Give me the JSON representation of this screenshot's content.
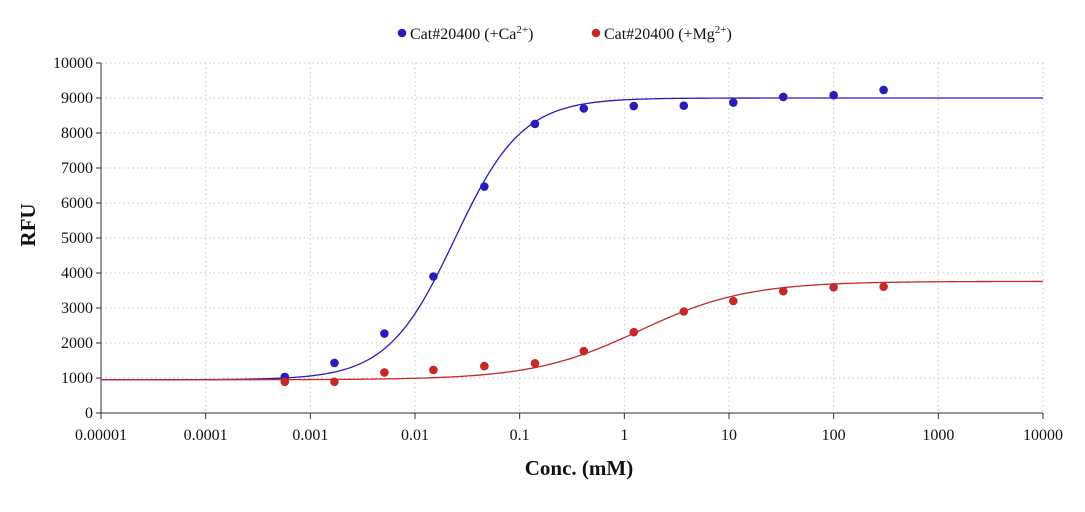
{
  "chart_data": {
    "type": "scatter",
    "xscale": "log",
    "xlim": [
      1e-05,
      10000
    ],
    "ylim": [
      0,
      10000
    ],
    "xlabel": "Conc. (mM)",
    "ylabel": "RFU",
    "grid": true,
    "legend_position": "top-center",
    "x_tick_labels": [
      "0.00001",
      "0.0001",
      "0.001",
      "0.01",
      "0.1",
      "1",
      "10",
      "100",
      "1000",
      "10000"
    ],
    "y_tick_labels": [
      "0",
      "1000",
      "2000",
      "3000",
      "4000",
      "5000",
      "6000",
      "7000",
      "8000",
      "9000",
      "10000"
    ],
    "series": [
      {
        "name": "Cat#20400 (+Ca2+)",
        "label_base": "Cat#20400 (+Ca",
        "label_sup": "2+",
        "label_end": ")",
        "color": "#2a1cb8",
        "x": [
          0.00057,
          0.0017,
          0.0051,
          0.015,
          0.046,
          0.14,
          0.41,
          1.23,
          3.7,
          11,
          33,
          100,
          300
        ],
        "y": [
          1030,
          1430,
          2270,
          3900,
          6470,
          8260,
          8700,
          8770,
          8780,
          8870,
          9030,
          9080,
          9230
        ],
        "fit": {
          "bottom": 950,
          "top": 9000,
          "ec50": 0.024,
          "hill": 1.35
        }
      },
      {
        "name": "Cat#20400 (+Mg2+)",
        "label_base": "Cat#20400 (+Mg",
        "label_sup": "2+",
        "label_end": ")",
        "color": "#c62828",
        "x": [
          0.00057,
          0.0017,
          0.0051,
          0.015,
          0.046,
          0.14,
          0.41,
          1.23,
          3.7,
          11,
          33,
          100,
          300
        ],
        "y": [
          890,
          890,
          1160,
          1230,
          1340,
          1420,
          1770,
          2310,
          2900,
          3200,
          3480,
          3590,
          3610
        ],
        "fit": {
          "bottom": 950,
          "top": 3760,
          "ec50": 1.4,
          "hill": 0.85
        }
      }
    ]
  }
}
